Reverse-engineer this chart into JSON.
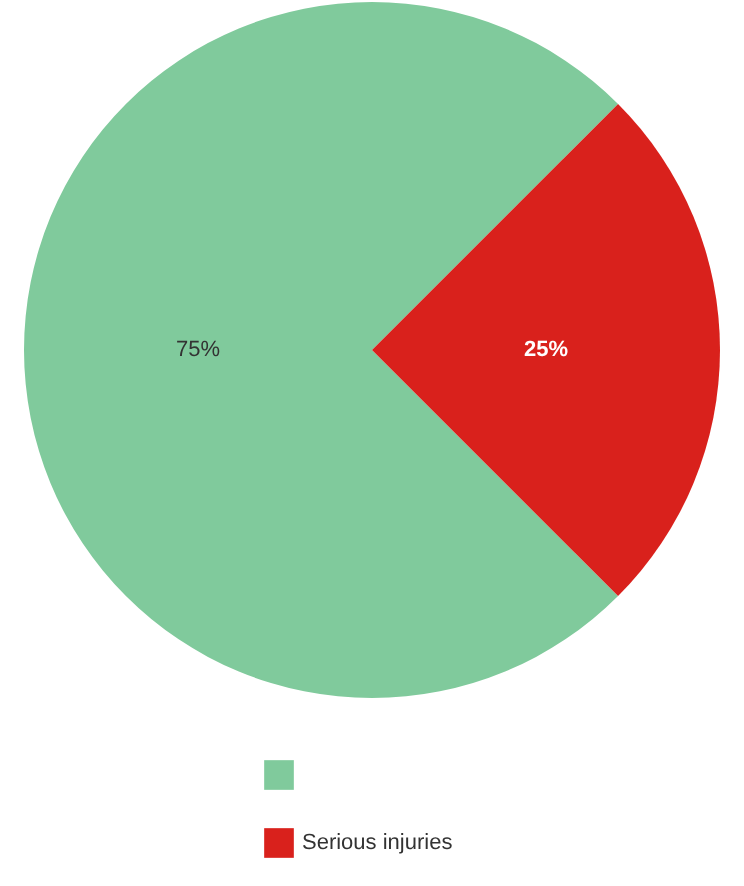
{
  "chart_data": {
    "type": "pie",
    "categories": [
      null,
      "Serious injuries"
    ],
    "values": [
      75,
      25
    ],
    "colors": [
      "#80ca9c",
      "#d9211c"
    ],
    "value_labels": [
      "75%",
      "25%"
    ],
    "legend": "bottom"
  }
}
